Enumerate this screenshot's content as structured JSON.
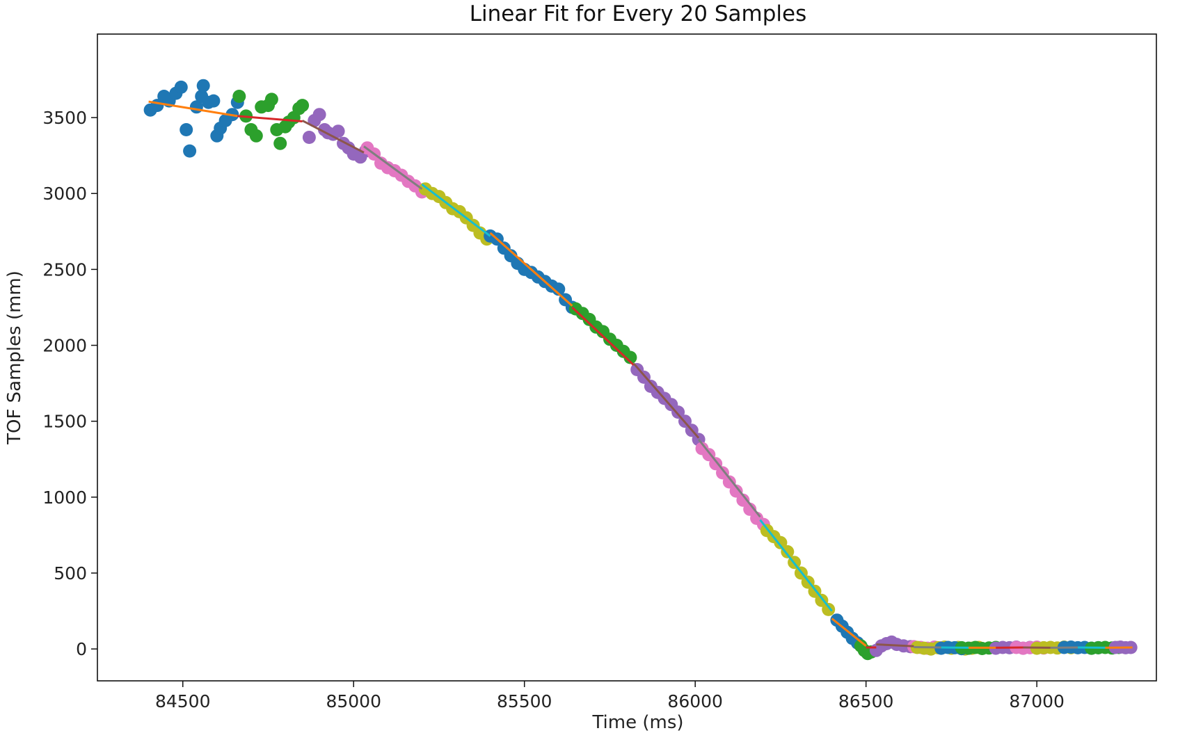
{
  "chart_data": {
    "type": "scatter",
    "title": "Linear Fit for Every 20 Samples",
    "xlabel": "Time (ms)",
    "ylabel": "TOF Samples (mm)",
    "xlim": [
      84250,
      87350
    ],
    "ylim": [
      -210,
      4050
    ],
    "xticks": [
      84500,
      85000,
      85500,
      86000,
      86500,
      87000
    ],
    "yticks": [
      0,
      500,
      1000,
      1500,
      2000,
      2500,
      3000,
      3500
    ],
    "grid": false,
    "legend": "none",
    "scatter_colors": [
      "#1f77b4",
      "#2ca02c",
      "#9467bd",
      "#e377c2",
      "#bcbd22"
    ],
    "fit_colors": [
      "#ff7f0e",
      "#d62728",
      "#8c564b",
      "#7f7f7f",
      "#17becf"
    ],
    "series": [
      {
        "x": [
          84405,
          84425,
          84445,
          84460,
          84480,
          84495,
          84510,
          84520,
          84540,
          84555,
          84560,
          84575,
          84590,
          84600,
          84610,
          84625,
          84645,
          84660
        ],
        "y": [
          3550,
          3580,
          3640,
          3610,
          3660,
          3700,
          3420,
          3280,
          3570,
          3640,
          3710,
          3600,
          3610,
          3380,
          3430,
          3480,
          3520,
          3600
        ]
      },
      {
        "x": [
          84665,
          84685,
          84700,
          84715,
          84730,
          84750,
          84760,
          84775,
          84785,
          84800,
          84810,
          84825,
          84840,
          84850
        ],
        "y": [
          3640,
          3510,
          3420,
          3380,
          3570,
          3580,
          3620,
          3420,
          3330,
          3440,
          3470,
          3500,
          3560,
          3580
        ]
      },
      {
        "x": [
          84870,
          84885,
          84900,
          84915,
          84925,
          84940,
          84955,
          84970,
          84985,
          85000,
          85020,
          85035
        ],
        "y": [
          3370,
          3480,
          3520,
          3420,
          3400,
          3390,
          3410,
          3330,
          3300,
          3260,
          3240,
          3280
        ]
      },
      {
        "x": [
          85040,
          85060,
          85080,
          85100,
          85120,
          85140,
          85160,
          85180,
          85200
        ],
        "y": [
          3300,
          3260,
          3200,
          3170,
          3150,
          3120,
          3080,
          3050,
          3010
        ]
      },
      {
        "x": [
          85210,
          85230,
          85250,
          85270,
          85290,
          85310,
          85330,
          85350,
          85370,
          85390
        ],
        "y": [
          3030,
          3000,
          2980,
          2940,
          2900,
          2880,
          2840,
          2790,
          2740,
          2700
        ]
      },
      {
        "x": [
          85400,
          85420,
          85440,
          85460,
          85480,
          85500,
          85520,
          85540,
          85560,
          85580,
          85600,
          85620,
          85640
        ],
        "y": [
          2720,
          2700,
          2640,
          2590,
          2540,
          2500,
          2480,
          2450,
          2420,
          2390,
          2370,
          2300,
          2250
        ]
      },
      {
        "x": [
          85650,
          85670,
          85690,
          85710,
          85730,
          85750,
          85770,
          85790,
          85810
        ],
        "y": [
          2240,
          2210,
          2170,
          2120,
          2090,
          2040,
          2000,
          1960,
          1920
        ]
      },
      {
        "x": [
          85830,
          85850,
          85870,
          85890,
          85910,
          85930,
          85950,
          85970,
          85990,
          86010
        ],
        "y": [
          1840,
          1790,
          1730,
          1690,
          1650,
          1610,
          1560,
          1500,
          1440,
          1380
        ]
      },
      {
        "x": [
          86020,
          86040,
          86060,
          86080,
          86100,
          86120,
          86140,
          86160,
          86180,
          86200
        ],
        "y": [
          1320,
          1280,
          1220,
          1160,
          1100,
          1040,
          980,
          920,
          860,
          820
        ]
      },
      {
        "x": [
          86210,
          86230,
          86250,
          86270,
          86290,
          86310,
          86330,
          86350,
          86370,
          86390
        ],
        "y": [
          780,
          740,
          700,
          640,
          570,
          500,
          440,
          380,
          320,
          260
        ]
      },
      {
        "x": [
          86415,
          86430,
          86445,
          86460,
          86475
        ],
        "y": [
          190,
          150,
          110,
          70,
          40
        ]
      },
      {
        "x": [
          86485,
          86495,
          86505,
          86515
        ],
        "y": [
          20,
          -10,
          -30,
          -20
        ]
      },
      {
        "x": [
          86530,
          86545,
          86560,
          86575,
          86590,
          86610,
          86630
        ],
        "y": [
          -10,
          20,
          35,
          45,
          30,
          20,
          15
        ]
      },
      {
        "x": [
          86640,
          86660,
          86680,
          86700,
          86720
        ],
        "y": [
          15,
          10,
          5,
          12,
          8
        ]
      },
      {
        "x": [
          86650,
          86670,
          86690,
          86710,
          86730,
          86750,
          86770,
          86790,
          86810,
          86830
        ],
        "y": [
          10,
          5,
          0,
          8,
          12,
          5,
          10,
          0,
          5,
          10
        ]
      },
      {
        "x": [
          86720,
          86740,
          86760,
          86780,
          86800
        ],
        "y": [
          5,
          10,
          8,
          2,
          5
        ]
      },
      {
        "x": [
          86780,
          86800,
          86820,
          86840,
          86860,
          86880
        ],
        "y": [
          8,
          5,
          10,
          3,
          6,
          10
        ]
      },
      {
        "x": [
          86880,
          86900,
          86920,
          86940,
          86960,
          86980
        ],
        "y": [
          5,
          10,
          8,
          12,
          5,
          10
        ]
      },
      {
        "x": [
          86940,
          86960,
          86980,
          87000,
          87020
        ],
        "y": [
          10,
          5,
          8,
          12,
          6
        ]
      },
      {
        "x": [
          87000,
          87020,
          87040,
          87060,
          87080,
          87100
        ],
        "y": [
          5,
          8,
          10,
          6,
          12,
          8
        ]
      },
      {
        "x": [
          87080,
          87100,
          87120,
          87140,
          87160,
          87180
        ],
        "y": [
          10,
          12,
          8,
          10,
          5,
          8
        ]
      },
      {
        "x": [
          87160,
          87180,
          87200,
          87220,
          87240
        ],
        "y": [
          5,
          8,
          10,
          6,
          10
        ]
      },
      {
        "x": [
          87230,
          87245,
          87260,
          87275
        ],
        "y": [
          10,
          12,
          8,
          10
        ]
      }
    ],
    "fits": [
      {
        "x": [
          84400,
          84660
        ],
        "y": [
          3605,
          3510
        ]
      },
      {
        "x": [
          84660,
          84850
        ],
        "y": [
          3510,
          3475
        ]
      },
      {
        "x": [
          84850,
          85030
        ],
        "y": [
          3480,
          3270
        ]
      },
      {
        "x": [
          85030,
          85200
        ],
        "y": [
          3310,
          3030
        ]
      },
      {
        "x": [
          85200,
          85400
        ],
        "y": [
          3060,
          2720
        ]
      },
      {
        "x": [
          85400,
          85640
        ],
        "y": [
          2740,
          2260
        ]
      },
      {
        "x": [
          85640,
          85820
        ],
        "y": [
          2250,
          1870
        ]
      },
      {
        "x": [
          85820,
          86010
        ],
        "y": [
          1880,
          1390
        ]
      },
      {
        "x": [
          86010,
          86190
        ],
        "y": [
          1380,
          870
        ]
      },
      {
        "x": [
          86190,
          86400
        ],
        "y": [
          850,
          250
        ]
      },
      {
        "x": [
          86400,
          86500
        ],
        "y": [
          200,
          20
        ]
      },
      {
        "x": [
          86500,
          86530
        ],
        "y": [
          10,
          10
        ]
      },
      {
        "x": [
          86530,
          86640
        ],
        "y": [
          30,
          18
        ]
      },
      {
        "x": [
          86640,
          86720
        ],
        "y": [
          12,
          10
        ]
      },
      {
        "x": [
          86720,
          86800
        ],
        "y": [
          10,
          8
        ]
      },
      {
        "x": [
          86800,
          86880
        ],
        "y": [
          8,
          8
        ]
      },
      {
        "x": [
          86880,
          86960
        ],
        "y": [
          8,
          10
        ]
      },
      {
        "x": [
          86960,
          87040
        ],
        "y": [
          10,
          8
        ]
      },
      {
        "x": [
          87040,
          87120
        ],
        "y": [
          8,
          10
        ]
      },
      {
        "x": [
          87120,
          87200
        ],
        "y": [
          10,
          8
        ]
      },
      {
        "x": [
          87200,
          87280
        ],
        "y": [
          8,
          10
        ]
      }
    ]
  }
}
